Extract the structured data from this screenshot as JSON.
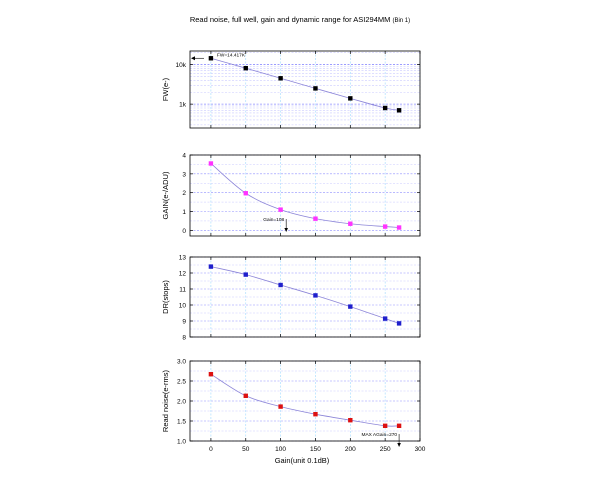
{
  "figure": {
    "title": "Read noise, full well, gain and dynamic range for ASI294MM",
    "title_suffix": "(Bin 1)",
    "xlabel": "Gain(unit 0.1dB)"
  },
  "colors": {
    "grid_minor": "#c9c9ff",
    "grid_major": "#8f8fff",
    "grid_vertical": "#9fd8ff",
    "fw_series": "#000000",
    "gain_series": "#ff33ff",
    "dr_series": "#1f1fcc",
    "rn_series": "#dd1111",
    "fit_line": "#8d86d8"
  },
  "chart_data": [
    {
      "type": "line",
      "ylabel": "FW(e-)",
      "yscale": "log",
      "xlim": [
        -30,
        300
      ],
      "ylim": [
        250,
        22000
      ],
      "yticks": [
        1000,
        10000
      ],
      "yticklabels": [
        "1k",
        "10k"
      ],
      "x": [
        0,
        50,
        100,
        150,
        200,
        250,
        270
      ],
      "series": [
        {
          "values": [
            14417,
            8100,
            4500,
            2500,
            1400,
            800,
            700
          ]
        }
      ],
      "annotations": [
        {
          "text": "FW=14.417K",
          "x": 0,
          "y": 14417,
          "arrow": "left"
        }
      ]
    },
    {
      "type": "line",
      "ylabel": "GAIN(e-/ADU)",
      "xlim": [
        -30,
        300
      ],
      "ylim": [
        -0.3,
        4.0
      ],
      "yticks": [
        0,
        1,
        2,
        3,
        4
      ],
      "x": [
        0,
        50,
        100,
        150,
        200,
        250,
        270
      ],
      "series": [
        {
          "values": [
            3.55,
            1.97,
            1.1,
            0.62,
            0.35,
            0.2,
            0.15
          ]
        }
      ],
      "annotations": [
        {
          "text": "Gain=108",
          "x": 108,
          "y": 0.55,
          "arrow": "down"
        }
      ]
    },
    {
      "type": "line",
      "ylabel": "DR(stops)",
      "xlim": [
        -30,
        300
      ],
      "ylim": [
        8,
        13
      ],
      "yticks": [
        8,
        9,
        10,
        11,
        12,
        13
      ],
      "x": [
        0,
        50,
        100,
        150,
        200,
        250,
        270
      ],
      "series": [
        {
          "values": [
            12.4,
            11.9,
            11.25,
            10.6,
            9.9,
            9.15,
            8.85
          ]
        }
      ]
    },
    {
      "type": "line",
      "ylabel": "Read noise(e-rms)",
      "xlim": [
        -30,
        300
      ],
      "ylim": [
        1.0,
        3.0
      ],
      "yticks": [
        1.0,
        1.5,
        2.0,
        2.5,
        3.0
      ],
      "x": [
        0,
        50,
        100,
        150,
        200,
        250,
        270
      ],
      "series": [
        {
          "values": [
            2.67,
            2.13,
            1.86,
            1.67,
            1.52,
            1.38,
            1.38
          ]
        }
      ],
      "annotations": [
        {
          "text": "MAX AGain=270",
          "x": 270,
          "y": 1.2,
          "arrow": "down"
        }
      ]
    }
  ],
  "x_axis": {
    "ticks": [
      0,
      50,
      100,
      150,
      200,
      250,
      300
    ],
    "ticklabels": [
      "0",
      "50",
      "100",
      "150",
      "200",
      "250",
      "300"
    ]
  }
}
